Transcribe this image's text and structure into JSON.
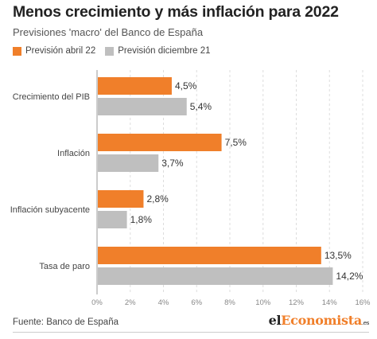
{
  "header": {
    "title": "Menos crecimiento y más inflación para 2022",
    "subtitle": "Previsiones 'macro' del Banco de España"
  },
  "legend": [
    {
      "label": "Previsión abril 22",
      "color": "#f07f2a"
    },
    {
      "label": "Previsión diciembre 21",
      "color": "#bfbfbf"
    }
  ],
  "chart_data": {
    "type": "bar",
    "orientation": "horizontal",
    "categories": [
      "Crecimiento del PIB",
      "Inflación",
      "Inflación subyacente",
      "Tasa de paro"
    ],
    "series": [
      {
        "name": "Previsión abril 22",
        "values": [
          4.5,
          7.5,
          2.8,
          13.5
        ],
        "labels": [
          "4,5%",
          "7,5%",
          "2,8%",
          "13,5%"
        ],
        "color": "#f07f2a"
      },
      {
        "name": "Previsión diciembre 21",
        "values": [
          5.4,
          3.7,
          1.8,
          14.2
        ],
        "labels": [
          "5,4%",
          "3,7%",
          "1,8%",
          "14,2%"
        ],
        "color": "#bfbfbf"
      }
    ],
    "xlim": [
      0,
      16
    ],
    "xticks": [
      0,
      2,
      4,
      6,
      8,
      10,
      12,
      14,
      16
    ],
    "xtick_labels": [
      "0%",
      "2%",
      "4%",
      "6%",
      "8%",
      "10%",
      "12%",
      "14%",
      "16%"
    ],
    "grid": true,
    "legend_position": "top-left"
  },
  "footer": {
    "source": "Fuente: Banco de España",
    "logo_prefix": "el",
    "logo_accent": "Economista",
    "logo_suffix": ".es"
  }
}
